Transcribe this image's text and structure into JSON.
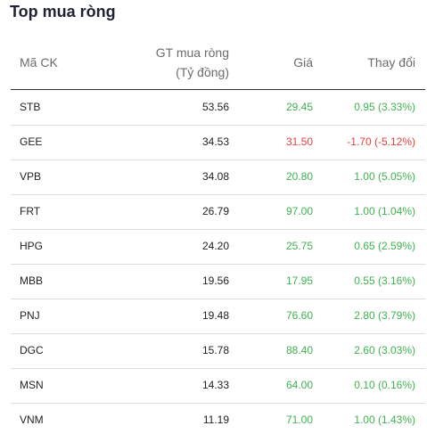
{
  "title": "Top mua ròng",
  "table": {
    "headers": [
      "Mã CK",
      [
        "GT mua ròng",
        "(Tỷ đồng)"
      ],
      "Giá",
      "Thay đổi"
    ],
    "rows": [
      [
        "STB",
        "53.56",
        "29.45",
        "0.95 (3.33%)"
      ],
      [
        "GEE",
        "34.53",
        "31.50",
        "-1.70 (-5.12%)"
      ],
      [
        "VPB",
        "34.08",
        "20.80",
        "1.00 (5.05%)"
      ],
      [
        "FRT",
        "26.79",
        "97.00",
        "1.00 (1.04%)"
      ],
      [
        "HPG",
        "24.20",
        "25.75",
        "0.65 (2.59%)"
      ],
      [
        "MBB",
        "19.56",
        "17.95",
        "0.55 (3.16%)"
      ],
      [
        "PNJ",
        "19.48",
        "76.60",
        "2.80 (3.79%)"
      ],
      [
        "DGC",
        "15.78",
        "88.40",
        "2.60 (3.03%)"
      ],
      [
        "MSN",
        "14.33",
        "64.00",
        "0.10 (0.16%)"
      ],
      [
        "VNM",
        "11.19",
        "71.00",
        "1.00 (1.43%)"
      ]
    ]
  }
}
